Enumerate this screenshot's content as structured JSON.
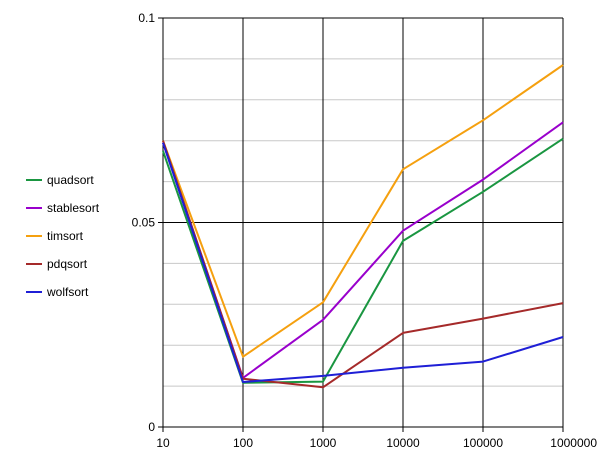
{
  "chart_data": {
    "type": "line",
    "title": "",
    "xlabel": "",
    "ylabel": "",
    "x": [
      10,
      100,
      1000,
      10000,
      100000,
      1000000
    ],
    "x_tick_labels": [
      "10",
      "100",
      "1000",
      "10000",
      "100000",
      "1000000"
    ],
    "x_scale": "log",
    "ylim": [
      0,
      0.1
    ],
    "y_ticks": [
      0,
      0.05,
      0.1
    ],
    "y_tick_labels": [
      "0",
      "0.05",
      "0.1"
    ],
    "grid": true,
    "legend_position": "left",
    "series": [
      {
        "name": "quadsort",
        "color": "#1a9641",
        "values": [
          0.0675,
          0.0108,
          0.0111,
          0.0455,
          0.0575,
          0.0705
        ]
      },
      {
        "name": "stablesort",
        "color": "#9900cc",
        "values": [
          0.0695,
          0.012,
          0.0262,
          0.048,
          0.0605,
          0.0745
        ]
      },
      {
        "name": "timsort",
        "color": "#f5a00f",
        "values": [
          0.07,
          0.0172,
          0.0305,
          0.063,
          0.075,
          0.0885
        ]
      },
      {
        "name": "pdqsort",
        "color": "#a52a2a",
        "values": [
          0.07,
          0.0118,
          0.0097,
          0.023,
          0.0265,
          0.0303
        ]
      },
      {
        "name": "wolfsort",
        "color": "#1f1fd6",
        "values": [
          0.0695,
          0.011,
          0.0125,
          0.0145,
          0.016,
          0.022
        ]
      }
    ]
  }
}
